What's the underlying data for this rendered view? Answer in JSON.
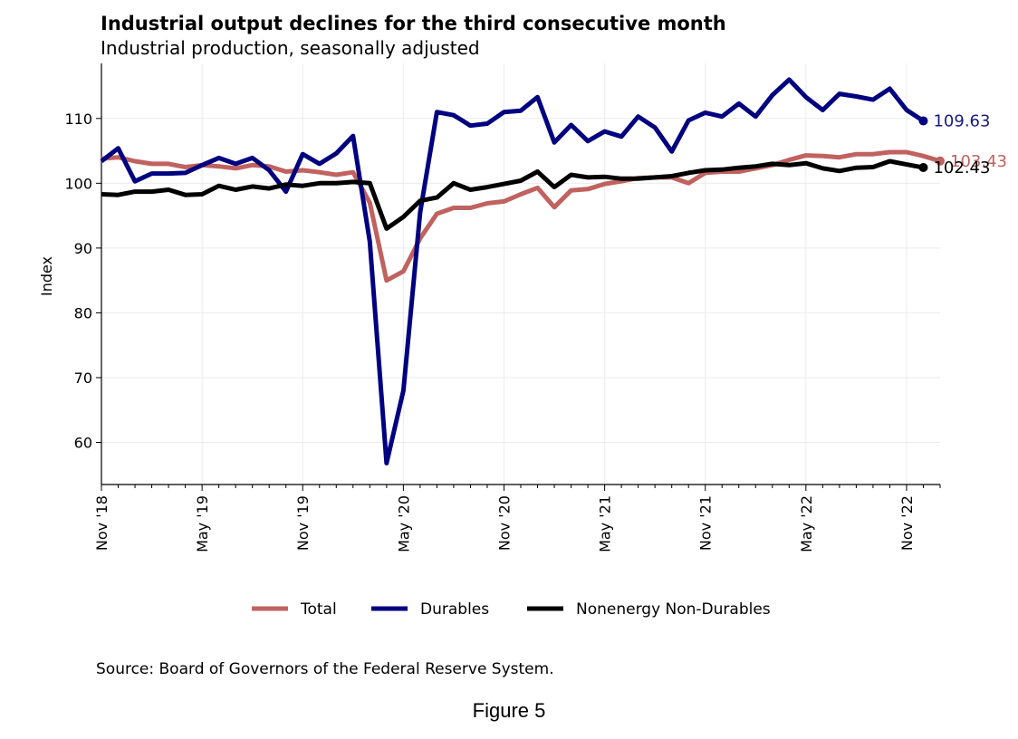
{
  "figure_caption": "Figure 5",
  "source": "Source: Board of Governors of the Federal Reserve System.",
  "chart_data": {
    "type": "line",
    "title": "Industrial output declines for the third consecutive month",
    "subtitle": "Industrial production, seasonally adjusted",
    "xlabel": "",
    "ylabel": "Index",
    "ylim": [
      53.5,
      118.5
    ],
    "yticks": [
      60,
      70,
      80,
      90,
      100,
      110
    ],
    "grid": true,
    "legend_position": "bottom",
    "x": [
      "2018-11",
      "2018-12",
      "2019-01",
      "2019-02",
      "2019-03",
      "2019-04",
      "2019-05",
      "2019-06",
      "2019-07",
      "2019-08",
      "2019-09",
      "2019-10",
      "2019-11",
      "2019-12",
      "2020-01",
      "2020-02",
      "2020-03",
      "2020-04",
      "2020-05",
      "2020-06",
      "2020-07",
      "2020-08",
      "2020-09",
      "2020-10",
      "2020-11",
      "2020-12",
      "2021-01",
      "2021-02",
      "2021-03",
      "2021-04",
      "2021-05",
      "2021-06",
      "2021-07",
      "2021-08",
      "2021-09",
      "2021-10",
      "2021-11",
      "2021-12",
      "2022-01",
      "2022-02",
      "2022-03",
      "2022-04",
      "2022-05",
      "2022-06",
      "2022-07",
      "2022-08",
      "2022-09",
      "2022-10",
      "2022-11",
      "2022-12",
      "2023-01"
    ],
    "xticks": [
      "Nov '18",
      "May '19",
      "Nov '19",
      "May '20",
      "Nov '20",
      "May '21",
      "Nov '21",
      "May '22",
      "Nov '22"
    ],
    "series": [
      {
        "name": "Total",
        "color": "#c0625f",
        "end_label": "103.43",
        "values": [
          103.8,
          104.0,
          103.4,
          103.0,
          103.0,
          102.5,
          102.8,
          102.6,
          102.3,
          102.8,
          102.6,
          101.8,
          102.0,
          101.7,
          101.3,
          101.7,
          97.0,
          85.0,
          86.4,
          91.5,
          95.3,
          96.2,
          96.2,
          96.9,
          97.2,
          98.3,
          99.3,
          96.3,
          98.9,
          99.1,
          99.9,
          100.3,
          100.8,
          100.9,
          100.9,
          100.0,
          101.6,
          101.8,
          101.8,
          102.3,
          102.8,
          103.6,
          104.3,
          104.2,
          104.0,
          104.5,
          104.5,
          104.8,
          104.8,
          104.2,
          103.43
        ]
      },
      {
        "name": "Durables",
        "color": "#000080",
        "end_label": "109.63",
        "values": [
          103.4,
          105.4,
          100.3,
          101.5,
          101.5,
          101.6,
          102.8,
          103.9,
          103.0,
          103.9,
          102.0,
          98.7,
          104.5,
          103.0,
          104.6,
          107.3,
          91.0,
          56.8,
          68.0,
          95.5,
          111.0,
          110.5,
          108.9,
          109.2,
          111.0,
          111.2,
          113.3,
          106.3,
          109.0,
          106.5,
          108.0,
          107.2,
          110.3,
          108.6,
          104.9,
          109.7,
          110.9,
          110.3,
          112.3,
          110.3,
          113.6,
          116.0,
          113.3,
          111.3,
          113.8,
          113.4,
          112.9,
          114.6,
          111.3,
          109.63,
          null
        ]
      },
      {
        "name": "Nonenergy Non-Durables",
        "color": "#000000",
        "end_label": "102.43",
        "values": [
          98.3,
          98.2,
          98.7,
          98.7,
          99.0,
          98.2,
          98.3,
          99.6,
          99.0,
          99.5,
          99.2,
          99.8,
          99.6,
          100.0,
          100.0,
          100.2,
          100.0,
          93.0,
          94.8,
          97.3,
          97.8,
          100.0,
          99.0,
          99.4,
          99.9,
          100.4,
          101.8,
          99.4,
          101.3,
          100.9,
          101.0,
          100.7,
          100.7,
          100.9,
          101.1,
          101.6,
          102.0,
          102.1,
          102.4,
          102.6,
          103.0,
          102.8,
          103.1,
          102.3,
          101.9,
          102.4,
          102.5,
          103.4,
          102.9,
          102.43,
          null
        ]
      }
    ]
  }
}
